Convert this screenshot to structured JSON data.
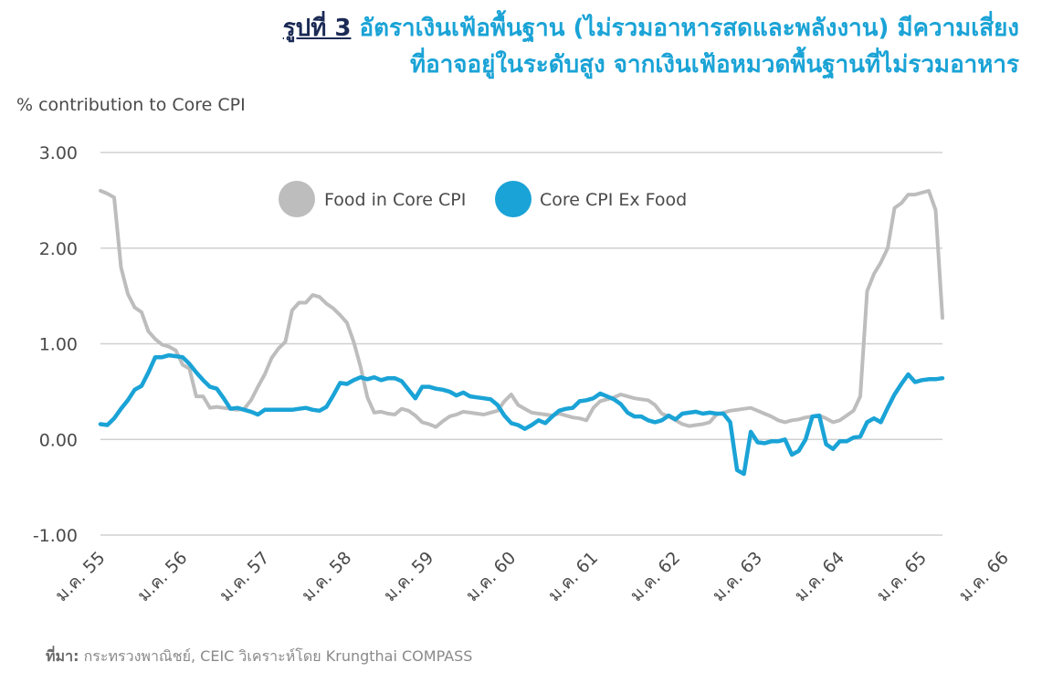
{
  "title": {
    "fig_label": "รูปที่ 3",
    "line1": "อัตราเงินเฟ้อพื้นฐาน (ไม่รวมอาหารสดและพลังงาน) มีความเสี่ยง",
    "line2": "ที่อาจอยู่ในระดับสูง จากเงินเฟ้อหมวดพื้นฐานที่ไม่รวมอาหาร"
  },
  "source": {
    "label": "ที่มา:",
    "text": "กระทรวงพาณิชย์, CEIC วิเคราะห์โดย Krungthai COMPASS"
  },
  "chart_data": {
    "type": "line",
    "title": "",
    "xlabel": "",
    "ylabel": "% contribution to Core CPI",
    "ylim": [
      -1,
      3
    ],
    "yticks": [
      3,
      2,
      1,
      0,
      -1
    ],
    "ytick_labels": [
      "3.00",
      "2.00",
      "1.00",
      "0.00",
      "-1.00"
    ],
    "xticks": [
      "ม.ค. 55",
      "ม.ค. 56",
      "ม.ค. 57",
      "ม.ค. 58",
      "ม.ค. 59",
      "ม.ค. 60",
      "ม.ค. 61",
      "ม.ค. 62",
      "ม.ค. 63",
      "ม.ค. 64",
      "ม.ค. 65",
      "ม.ค. 66"
    ],
    "x_start": "ม.ค. 55",
    "x_frequency": "monthly",
    "grid": "horizontal",
    "legend_position": "top",
    "series": [
      {
        "name": "Food in Core CPI",
        "color": "#bdbdbd",
        "values": [
          2.6,
          2.57,
          2.53,
          1.8,
          1.52,
          1.38,
          1.33,
          1.13,
          1.05,
          0.99,
          0.97,
          0.93,
          0.78,
          0.74,
          0.45,
          0.45,
          0.33,
          0.34,
          0.33,
          0.32,
          0.31,
          0.32,
          0.41,
          0.55,
          0.68,
          0.85,
          0.95,
          1.02,
          1.35,
          1.43,
          1.43,
          1.51,
          1.49,
          1.42,
          1.37,
          1.3,
          1.22,
          1.02,
          0.76,
          0.44,
          0.28,
          0.29,
          0.27,
          0.26,
          0.32,
          0.3,
          0.25,
          0.18,
          0.16,
          0.13,
          0.19,
          0.24,
          0.26,
          0.29,
          0.28,
          0.27,
          0.26,
          0.28,
          0.3,
          0.4,
          0.47,
          0.36,
          0.32,
          0.28,
          0.27,
          0.26,
          0.25,
          0.27,
          0.25,
          0.23,
          0.22,
          0.2,
          0.33,
          0.4,
          0.42,
          0.44,
          0.47,
          0.45,
          0.43,
          0.42,
          0.41,
          0.36,
          0.27,
          0.24,
          0.2,
          0.16,
          0.14,
          0.15,
          0.16,
          0.18,
          0.26,
          0.28,
          0.3,
          0.31,
          0.32,
          0.33,
          0.3,
          0.27,
          0.24,
          0.2,
          0.18,
          0.2,
          0.21,
          0.23,
          0.24,
          0.25,
          0.22,
          0.18,
          0.2,
          0.25,
          0.3,
          0.45,
          1.55,
          1.73,
          1.85,
          2.0,
          2.42,
          2.47,
          2.56,
          2.56,
          2.58,
          2.6,
          2.4,
          1.27
        ]
      },
      {
        "name": "Core CPI Ex Food",
        "color": "#1aa3d6",
        "values": [
          0.16,
          0.15,
          0.22,
          0.32,
          0.41,
          0.52,
          0.56,
          0.7,
          0.86,
          0.86,
          0.88,
          0.87,
          0.86,
          0.79,
          0.7,
          0.62,
          0.55,
          0.53,
          0.43,
          0.32,
          0.33,
          0.31,
          0.29,
          0.26,
          0.31,
          0.31,
          0.31,
          0.31,
          0.31,
          0.32,
          0.33,
          0.31,
          0.3,
          0.34,
          0.46,
          0.59,
          0.58,
          0.62,
          0.65,
          0.63,
          0.65,
          0.62,
          0.64,
          0.64,
          0.61,
          0.52,
          0.43,
          0.55,
          0.55,
          0.53,
          0.52,
          0.5,
          0.46,
          0.49,
          0.45,
          0.44,
          0.43,
          0.42,
          0.36,
          0.25,
          0.17,
          0.15,
          0.11,
          0.15,
          0.2,
          0.17,
          0.24,
          0.3,
          0.32,
          0.33,
          0.4,
          0.41,
          0.43,
          0.48,
          0.45,
          0.42,
          0.37,
          0.28,
          0.24,
          0.24,
          0.2,
          0.18,
          0.2,
          0.25,
          0.21,
          0.27,
          0.28,
          0.29,
          0.27,
          0.28,
          0.27,
          0.27,
          0.18,
          -0.32,
          -0.36,
          0.08,
          -0.03,
          -0.04,
          -0.02,
          -0.02,
          0.0,
          -0.16,
          -0.12,
          0.0,
          0.24,
          0.25,
          -0.05,
          -0.1,
          -0.02,
          -0.02,
          0.02,
          0.03,
          0.18,
          0.22,
          0.18,
          0.33,
          0.47,
          0.58,
          0.68,
          0.6,
          0.62,
          0.63,
          0.63,
          0.64
        ]
      }
    ]
  }
}
